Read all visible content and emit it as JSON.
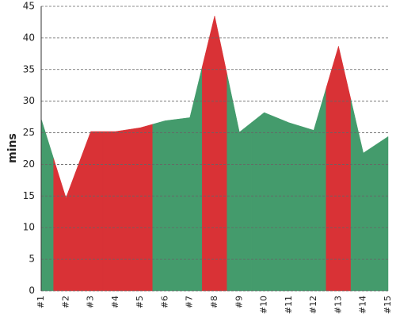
{
  "chart_data": {
    "type": "area",
    "y_label": "mins",
    "categories": [
      "#1",
      "#2",
      "#3",
      "#4",
      "#5",
      "#6",
      "#7",
      "#8",
      "#9",
      "#10",
      "#11",
      "#12",
      "#13",
      "#14",
      "#15"
    ],
    "values": [
      27.2,
      14.7,
      25.2,
      25.2,
      25.8,
      26.9,
      27.4,
      43.5,
      25.1,
      28.2,
      26.6,
      25.4,
      38.7,
      21.8,
      24.4
    ],
    "colors": [
      "#449b6c",
      "#d93236",
      "#d93236",
      "#d93236",
      "#d93236",
      "#449b6c",
      "#449b6c",
      "#d93236",
      "#449b6c",
      "#449b6c",
      "#449b6c",
      "#449b6c",
      "#d93236",
      "#449b6c",
      "#449b6c"
    ],
    "ylim": [
      0,
      45
    ],
    "yticks": [
      0,
      5,
      10,
      15,
      20,
      25,
      30,
      35,
      40,
      45
    ],
    "grid": true
  }
}
